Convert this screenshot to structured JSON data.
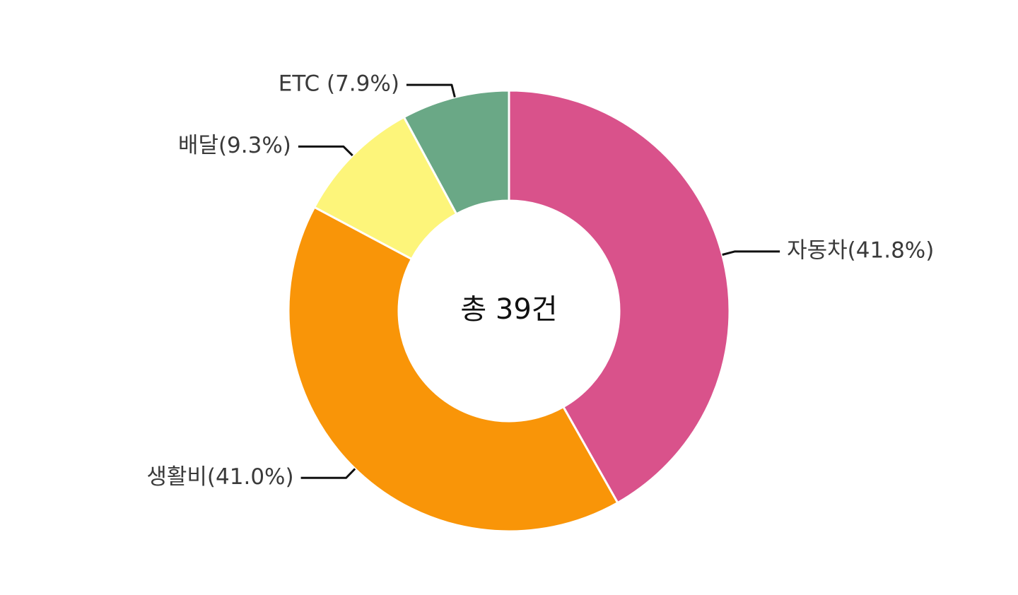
{
  "chart_data": {
    "type": "pie",
    "variant": "donut",
    "center_text": "총 39건",
    "start_angle_deg": 0,
    "direction": "clockwise",
    "legend": "none",
    "slices": [
      {
        "label": "자동차(41.8%)",
        "name": "자동차",
        "percent": 41.8,
        "color": "#d9528b"
      },
      {
        "label": "생활비(41.0%)",
        "name": "생활비",
        "percent": 41.0,
        "color": "#f99508"
      },
      {
        "label": "배달(9.3%)",
        "name": "배달",
        "percent": 9.3,
        "color": "#fdf57a"
      },
      {
        "label": "ETC (7.9%)",
        "name": "ETC",
        "percent": 7.9,
        "color": "#6aa886"
      }
    ]
  }
}
